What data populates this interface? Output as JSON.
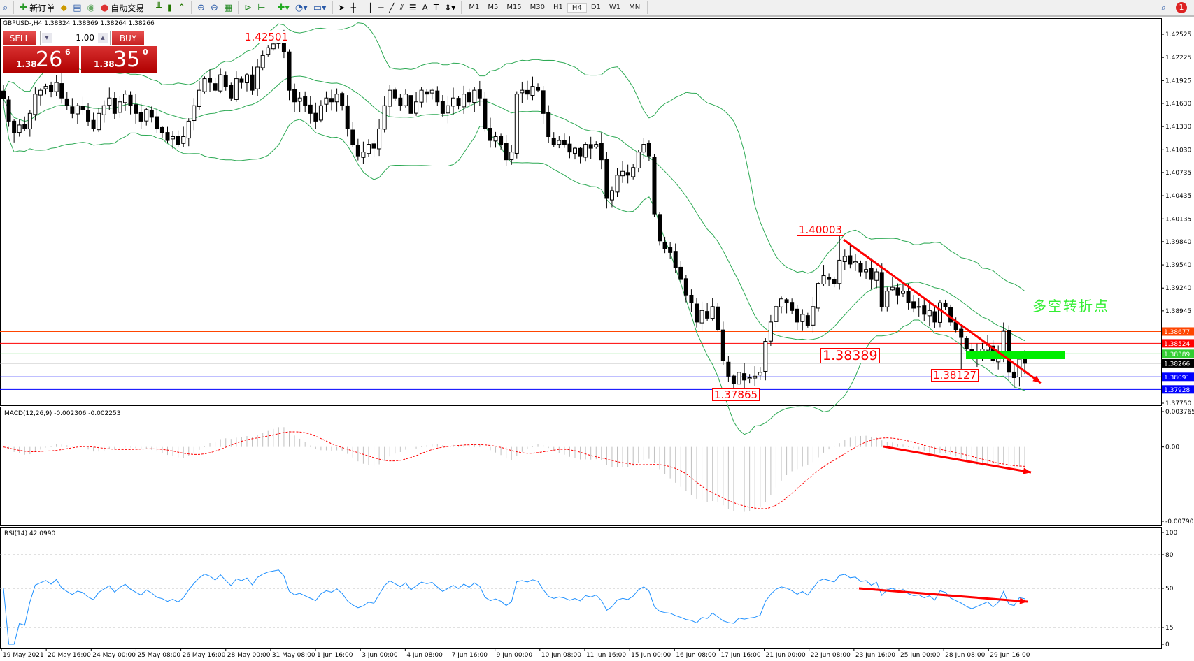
{
  "toolbar": {
    "new_order": "新订单",
    "auto_trading": "自动交易",
    "timeframes": [
      "M1",
      "M5",
      "M15",
      "M30",
      "H1",
      "H4",
      "D1",
      "W1",
      "MN"
    ],
    "active_timeframe": "H4",
    "notification_count": "1"
  },
  "chart": {
    "header": "GBPUSD-,H4  1.38324 1.38369 1.38264 1.38266"
  },
  "trade_panel": {
    "sell": "SELL",
    "buy": "BUY",
    "lot": "1.00",
    "sell_prefix": "1.38",
    "sell_big": "26",
    "sell_sup": "6",
    "buy_prefix": "1.38",
    "buy_big": "35",
    "buy_sup": "0"
  },
  "annotations": {
    "label_high": "1.42501",
    "label_mid_high": "1.40003",
    "label_level": "1.38389",
    "label_low2": "1.38127",
    "label_low": "1.37865",
    "text": "多空转折点"
  },
  "colors": {
    "bands": "#2eaa55",
    "up": "#ffffff",
    "down": "#000000",
    "annotation": "#ff0000",
    "macd_hist": "#c0c0c0",
    "macd_signal": "#ff0000",
    "rsi": "#1e90ff",
    "zone": "#00ee00"
  },
  "chart_data": {
    "type": "candlestick",
    "symbol": "GBPUSD-",
    "timeframe": "H4",
    "price_axis_ticks": [
      "1.42525",
      "1.42225",
      "1.41925",
      "1.41630",
      "1.41330",
      "1.41030",
      "1.40735",
      "1.40435",
      "1.40135",
      "1.39840",
      "1.39540",
      "1.39240",
      "1.38945",
      "1.37750"
    ],
    "price_range": [
      1.3775,
      1.42525
    ],
    "levels": [
      {
        "price": "1.38677",
        "color": "#ff4500"
      },
      {
        "price": "1.38524",
        "color": "#ff0000"
      },
      {
        "price": "1.38389",
        "color": "#32cd32"
      },
      {
        "price": "1.38266",
        "color": "#000000"
      },
      {
        "price": "1.38091",
        "color": "#0000ff"
      },
      {
        "price": "1.37928",
        "color": "#0000ff"
      }
    ],
    "time_labels": [
      "19 May 2021",
      "20 May 16:00",
      "24 May 00:00",
      "25 May 08:00",
      "26 May 16:00",
      "28 May 00:00",
      "31 May 08:00",
      "1 Jun 16:00",
      "3 Jun 00:00",
      "4 Jun 08:00",
      "7 Jun 16:00",
      "9 Jun 00:00",
      "10 Jun 08:00",
      "11 Jun 16:00",
      "15 Jun 00:00",
      "16 Jun 08:00",
      "17 Jun 16:00",
      "21 Jun 00:00",
      "22 Jun 08:00",
      "23 Jun 16:00",
      "25 Jun 00:00",
      "28 Jun 08:00",
      "29 Jun 16:00"
    ],
    "closes": [
      1.4169,
      1.414,
      1.4125,
      1.4135,
      1.413,
      1.415,
      1.4175,
      1.418,
      1.4185,
      1.4178,
      1.419,
      1.417,
      1.416,
      1.415,
      1.416,
      1.4155,
      1.414,
      1.413,
      1.415,
      1.416,
      1.417,
      1.415,
      1.4165,
      1.4175,
      1.416,
      1.415,
      1.414,
      1.4155,
      1.4145,
      1.413,
      1.4125,
      1.4115,
      1.412,
      1.411,
      1.412,
      1.414,
      1.416,
      1.418,
      1.4195,
      1.419,
      1.418,
      1.42,
      1.4185,
      1.417,
      1.4195,
      1.419,
      1.42,
      1.418,
      1.421,
      1.4225,
      1.4235,
      1.424,
      1.4245,
      1.423,
      1.418,
      1.4165,
      1.417,
      1.416,
      1.415,
      1.414,
      1.416,
      1.417,
      1.4165,
      1.4175,
      1.416,
      1.413,
      1.411,
      1.4095,
      1.41,
      1.411,
      1.4105,
      1.413,
      1.416,
      1.418,
      1.417,
      1.416,
      1.4175,
      1.415,
      1.4165,
      1.418,
      1.4175,
      1.418,
      1.4165,
      1.415,
      1.416,
      1.417,
      1.416,
      1.4175,
      1.4165,
      1.418,
      1.417,
      1.413,
      1.4115,
      1.412,
      1.411,
      1.409,
      1.41,
      1.4175,
      1.418,
      1.4175,
      1.4185,
      1.418,
      1.415,
      1.412,
      1.411,
      1.4115,
      1.411,
      1.41,
      1.4105,
      1.4095,
      1.411,
      1.4105,
      1.411,
      1.409,
      1.404,
      1.405,
      1.407,
      1.4075,
      1.407,
      1.408,
      1.41,
      1.411,
      1.4095,
      1.402,
      1.3985,
      1.3975,
      1.397,
      1.395,
      1.3935,
      1.3915,
      1.3905,
      1.388,
      1.3895,
      1.3885,
      1.39,
      1.387,
      1.383,
      1.381,
      1.38,
      1.3815,
      1.3805,
      1.3808,
      1.381,
      1.3815,
      1.3855,
      1.388,
      1.39,
      1.391,
      1.3905,
      1.3895,
      1.388,
      1.389,
      1.3875,
      1.39,
      1.393,
      1.394,
      1.3935,
      1.393,
      1.396,
      1.3965,
      1.3955,
      1.3958,
      1.3945,
      1.3948,
      1.3935,
      1.3945,
      1.39,
      1.392,
      1.3925,
      1.3915,
      1.392,
      1.3905,
      1.3898,
      1.39,
      1.389,
      1.3895,
      1.388,
      1.3905,
      1.39,
      1.388,
      1.387,
      1.386,
      1.3845,
      1.3835,
      1.384,
      1.3845,
      1.385,
      1.383,
      1.384,
      1.3868,
      1.3815,
      1.3808,
      1.3832,
      1.38266
    ],
    "indicators": {
      "bands": {
        "type": "Bollinger Bands",
        "period": 20,
        "deviation": 2
      },
      "macd": {
        "label": "MACD(12,26,9) -0.002306 -0.002253",
        "axis_ticks": [
          "0.003765",
          "0.00",
          "-0.007905"
        ],
        "range": [
          -0.007905,
          0.003765
        ]
      },
      "rsi": {
        "label": "RSI(14) 42.0990",
        "axis_ticks": [
          "100",
          "80",
          "50",
          "15",
          "0"
        ],
        "levels": [
          80,
          50,
          15
        ]
      }
    }
  }
}
